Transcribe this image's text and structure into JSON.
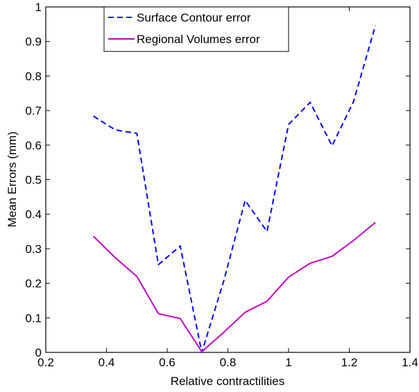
{
  "chart_data": {
    "type": "line",
    "title": "",
    "xlabel": "Relative contractilities",
    "ylabel": "Mean Errors (mm)",
    "xlim": [
      0.2,
      1.4
    ],
    "ylim": [
      0,
      1
    ],
    "xticks": [
      0.2,
      0.4,
      0.6,
      0.8,
      1,
      1.2,
      1.4
    ],
    "xtick_labels": [
      "0.2",
      "0.4",
      "0.6",
      "0.8",
      "1",
      "1.2",
      "1.4"
    ],
    "yticks": [
      0,
      0.1,
      0.2,
      0.3,
      0.4,
      0.5,
      0.6,
      0.7,
      0.8,
      0.9,
      1
    ],
    "ytick_labels": [
      "0",
      "0.1",
      "0.2",
      "0.3",
      "0.4",
      "0.5",
      "0.6",
      "0.7",
      "0.8",
      "0.9",
      "1"
    ],
    "grid": false,
    "legend_position": "top-left",
    "series": [
      {
        "name": "Surface Contour error",
        "color": "#0000ff",
        "line_style": "dashed",
        "x": [
          0.357,
          0.429,
          0.5,
          0.571,
          0.643,
          0.714,
          0.786,
          0.857,
          0.929,
          1.0,
          1.071,
          1.143,
          1.214,
          1.286
        ],
        "y": [
          0.684,
          0.644,
          0.634,
          0.254,
          0.308,
          0.0,
          0.206,
          0.44,
          0.35,
          0.66,
          0.724,
          0.598,
          0.726,
          0.946
        ]
      },
      {
        "name": "Regional Volumes error",
        "color": "#c000c0",
        "line_style": "solid",
        "x": [
          0.357,
          0.429,
          0.5,
          0.571,
          0.643,
          0.714,
          0.786,
          0.857,
          0.929,
          1.0,
          1.071,
          1.143,
          1.214,
          1.286
        ],
        "y": [
          0.336,
          0.274,
          0.22,
          0.112,
          0.098,
          0.002,
          0.058,
          0.116,
          0.148,
          0.218,
          0.258,
          0.278,
          0.324,
          0.376
        ]
      }
    ]
  }
}
